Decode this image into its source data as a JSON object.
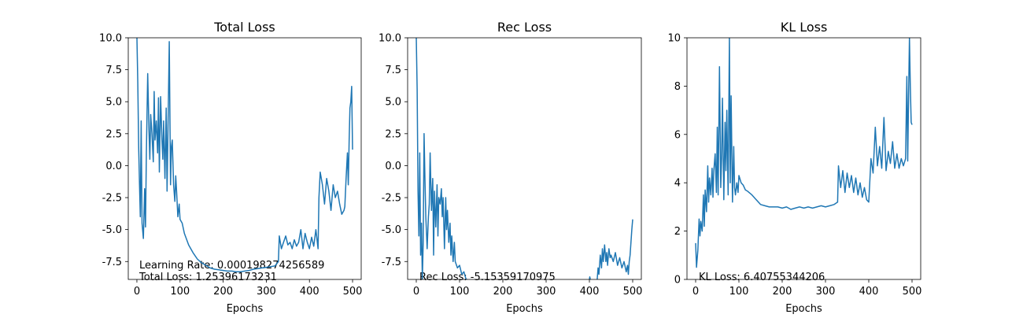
{
  "chart_data": [
    {
      "type": "line",
      "title": "Total Loss",
      "xlabel": "Epochs",
      "ylabel": "",
      "xlim": [
        -20,
        520
      ],
      "ylim": [
        -8.9,
        10.0
      ],
      "xticks": [
        0,
        100,
        200,
        300,
        400,
        500
      ],
      "xtick_labels": [
        "0",
        "100",
        "200",
        "300",
        "400",
        "500"
      ],
      "yticks": [
        -7.5,
        -5.0,
        -2.5,
        0.0,
        2.5,
        5.0,
        7.5,
        10.0
      ],
      "ytick_labels": [
        "-7.5",
        "-5.0",
        "-2.5",
        "0.0",
        "2.5",
        "5.0",
        "7.5",
        "10.0"
      ],
      "grid": false,
      "annotations": [
        "Learning Rate: 0.000198274256589",
        "Total Loss: 1.25396173231"
      ],
      "series": [
        {
          "color": "#1f77b4",
          "x": [
            0,
            2,
            4,
            6,
            8,
            10,
            12,
            15,
            18,
            20,
            22,
            25,
            28,
            30,
            32,
            35,
            38,
            40,
            42,
            45,
            48,
            50,
            52,
            55,
            58,
            60,
            62,
            65,
            68,
            70,
            72,
            75,
            78,
            80,
            82,
            85,
            88,
            90,
            92,
            95,
            98,
            100,
            105,
            110,
            120,
            130,
            140,
            150,
            160,
            170,
            180,
            190,
            200,
            210,
            220,
            230,
            240,
            250,
            260,
            270,
            280,
            290,
            300,
            310,
            320,
            328,
            330,
            335,
            340,
            345,
            350,
            355,
            360,
            365,
            370,
            375,
            380,
            385,
            390,
            395,
            400,
            405,
            410,
            415,
            420,
            422,
            425,
            430,
            435,
            440,
            445,
            450,
            455,
            460,
            465,
            470,
            475,
            480,
            482,
            485,
            488,
            490,
            492,
            494,
            496,
            498,
            500
          ],
          "y": [
            10.0,
            6.5,
            1.5,
            -1.5,
            -4.0,
            3.5,
            -4.5,
            -5.7,
            -1.8,
            -4.8,
            1.0,
            7.2,
            2.8,
            0.5,
            4.0,
            2.5,
            0.3,
            5.8,
            2.0,
            3.5,
            1.0,
            5.3,
            -0.5,
            5.4,
            2.0,
            0.5,
            3.5,
            -1.0,
            4.5,
            -2.0,
            2.5,
            9.7,
            -1.5,
            1.5,
            2.0,
            -1.5,
            -2.8,
            -0.8,
            -2.0,
            -4.0,
            -3.0,
            -4.2,
            -4.5,
            -5.3,
            -6.2,
            -6.8,
            -7.3,
            -7.6,
            -7.8,
            -8.0,
            -8.1,
            -8.15,
            -8.2,
            -8.25,
            -8.25,
            -8.3,
            -8.3,
            -8.25,
            -8.2,
            -8.1,
            -8.05,
            -8.0,
            -7.95,
            -7.9,
            -7.85,
            -7.5,
            -5.5,
            -6.5,
            -6.0,
            -5.5,
            -6.2,
            -6.0,
            -6.5,
            -5.8,
            -6.3,
            -6.0,
            -5.0,
            -6.5,
            -5.3,
            -6.0,
            -6.5,
            -5.6,
            -6.3,
            -5.0,
            -6.5,
            -2.5,
            -0.5,
            -1.5,
            -3.0,
            -1.0,
            -2.0,
            -3.5,
            -1.5,
            -2.5,
            -2.0,
            -3.0,
            -3.8,
            -3.5,
            -3.2,
            -1.0,
            1.0,
            -1.5,
            2.0,
            4.5,
            5.0,
            6.2,
            1.25
          ]
        }
      ]
    },
    {
      "type": "line",
      "title": "Rec Loss",
      "xlabel": "Epochs",
      "ylabel": "",
      "xlim": [
        -20,
        520
      ],
      "ylim": [
        -8.9,
        10.0
      ],
      "xticks": [
        0,
        100,
        200,
        300,
        400,
        500
      ],
      "xtick_labels": [
        "0",
        "100",
        "200",
        "300",
        "400",
        "500"
      ],
      "yticks": [
        -7.5,
        -5.0,
        -2.5,
        0.0,
        2.5,
        5.0,
        7.5,
        10.0
      ],
      "ytick_labels": [
        "-7.5",
        "-5.0",
        "-2.5",
        "0.0",
        "2.5",
        "5.0",
        "7.5",
        "10.0"
      ],
      "grid": false,
      "annotations": [
        "Rec Loss: -5.15359170975"
      ],
      "series": [
        {
          "color": "#1f77b4",
          "x": [
            0,
            2,
            4,
            6,
            8,
            10,
            12,
            14,
            16,
            18,
            20,
            22,
            25,
            28,
            30,
            32,
            35,
            38,
            40,
            42,
            45,
            48,
            50,
            52,
            55,
            58,
            60,
            62,
            65,
            68,
            70,
            72,
            75,
            78,
            80,
            82,
            85,
            88,
            90,
            95,
            100,
            105,
            110,
            115,
            118
          ],
          "y": [
            10.0,
            6.0,
            -2.0,
            -5.5,
            1.0,
            -7.0,
            -4.5,
            -8.9,
            -6.0,
            2.5,
            -1.0,
            -4.0,
            -6.5,
            -4.0,
            -3.0,
            1.0,
            -3.5,
            -1.0,
            -7.0,
            -2.0,
            -4.8,
            -1.5,
            -5.5,
            -2.5,
            -3.0,
            -1.8,
            -4.0,
            -2.5,
            -6.5,
            -2.5,
            -5.0,
            -3.5,
            -6.0,
            -4.5,
            -7.0,
            -5.5,
            -7.5,
            -6.0,
            -7.5,
            -8.0,
            -7.8,
            -8.5,
            -8.3,
            -8.9,
            -8.9
          ]
        },
        {
          "color": "#1f77b4",
          "x": [
            400,
            401,
            402
          ],
          "y": [
            -8.9,
            -8.7,
            -8.9
          ]
        },
        {
          "color": "#1f77b4",
          "x": [
            418,
            420,
            422,
            425,
            428,
            430,
            432,
            435,
            438,
            440,
            442,
            445,
            448,
            450,
            455,
            460,
            465,
            470,
            475,
            480,
            485,
            488,
            490,
            492,
            494,
            496,
            498,
            500
          ],
          "y": [
            -8.9,
            -8.0,
            -8.5,
            -7.0,
            -8.0,
            -6.5,
            -7.5,
            -6.2,
            -7.5,
            -6.8,
            -7.8,
            -6.5,
            -7.2,
            -7.0,
            -7.5,
            -6.8,
            -7.8,
            -7.2,
            -8.0,
            -7.5,
            -8.3,
            -7.8,
            -8.5,
            -7.5,
            -7.0,
            -6.0,
            -5.0,
            -4.2
          ]
        }
      ]
    },
    {
      "type": "line",
      "title": "KL Loss",
      "xlabel": "Epochs",
      "ylabel": "",
      "xlim": [
        -20,
        520
      ],
      "ylim": [
        0,
        10
      ],
      "xticks": [
        0,
        100,
        200,
        300,
        400,
        500
      ],
      "xtick_labels": [
        "0",
        "100",
        "200",
        "300",
        "400",
        "500"
      ],
      "yticks": [
        0,
        2,
        4,
        6,
        8,
        10
      ],
      "ytick_labels": [
        "0",
        "2",
        "4",
        "6",
        "8",
        "10"
      ],
      "grid": false,
      "annotations": [
        "KL Loss: 6.40755344206"
      ],
      "series": [
        {
          "color": "#1f77b4",
          "x": [
            0,
            2,
            5,
            8,
            10,
            12,
            15,
            18,
            20,
            22,
            25,
            28,
            30,
            32,
            35,
            38,
            40,
            42,
            45,
            48,
            50,
            52,
            55,
            58,
            60,
            62,
            65,
            68,
            70,
            72,
            75,
            78,
            80,
            82,
            85,
            88,
            90,
            92,
            95,
            98,
            100,
            105,
            110,
            115,
            120,
            130,
            140,
            150,
            160,
            170,
            180,
            190,
            200,
            210,
            220,
            230,
            240,
            250,
            260,
            270,
            280,
            290,
            300,
            310,
            320,
            328,
            330,
            335,
            340,
            345,
            350,
            355,
            360,
            365,
            370,
            375,
            380,
            385,
            390,
            395,
            400,
            405,
            410,
            415,
            420,
            425,
            430,
            435,
            440,
            445,
            450,
            455,
            460,
            465,
            470,
            475,
            480,
            485,
            488,
            490,
            492,
            494,
            496,
            498,
            500
          ],
          "y": [
            1.5,
            0.5,
            1.2,
            2.5,
            1.8,
            2.4,
            2.0,
            3.5,
            2.2,
            3.7,
            2.8,
            4.7,
            3.2,
            4.2,
            3.5,
            4.6,
            3.4,
            4.5,
            5.2,
            3.6,
            6.3,
            3.5,
            8.8,
            3.8,
            5.0,
            7.5,
            3.3,
            6.5,
            4.5,
            7.0,
            3.5,
            10.0,
            4.0,
            7.6,
            3.2,
            5.5,
            3.8,
            3.5,
            4.0,
            3.6,
            4.3,
            4.0,
            3.9,
            3.7,
            3.65,
            3.5,
            3.3,
            3.1,
            3.05,
            3.0,
            3.0,
            3.0,
            2.95,
            3.0,
            2.9,
            2.95,
            3.0,
            2.95,
            3.0,
            2.95,
            3.0,
            3.05,
            3.0,
            3.05,
            3.1,
            3.2,
            4.7,
            3.8,
            4.5,
            3.6,
            4.4,
            3.8,
            4.3,
            3.6,
            4.2,
            3.5,
            4.0,
            3.4,
            3.8,
            3.3,
            3.2,
            5.0,
            4.4,
            6.3,
            4.7,
            5.5,
            4.6,
            6.7,
            4.5,
            5.3,
            4.8,
            5.7,
            4.6,
            5.2,
            4.6,
            5.0,
            4.7,
            5.0,
            8.4,
            4.9,
            7.6,
            10.0,
            8.0,
            6.5,
            6.4
          ]
        }
      ]
    }
  ]
}
